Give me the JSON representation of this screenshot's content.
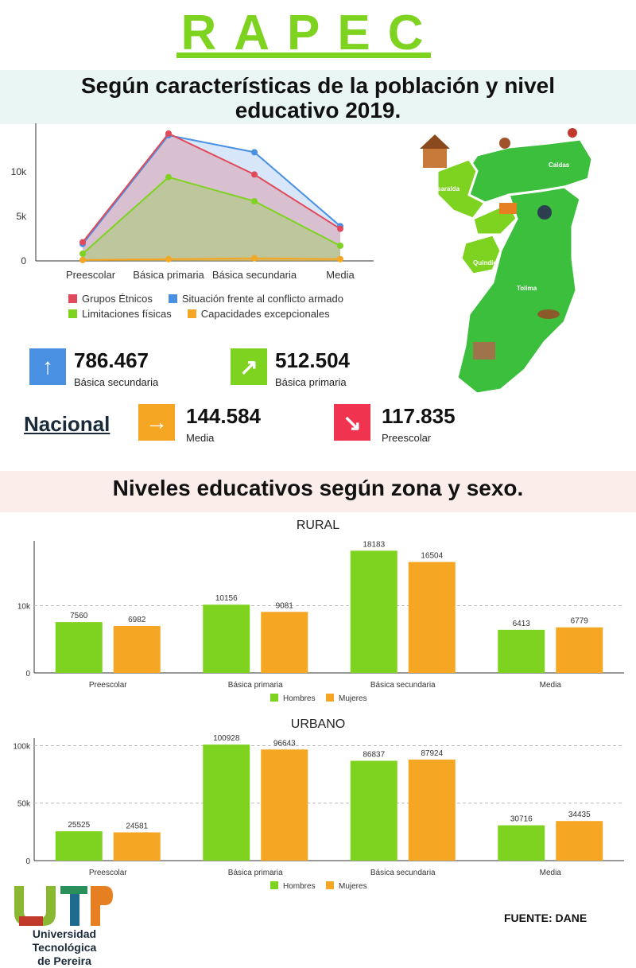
{
  "header": {
    "title": "RAPEC",
    "subtitle1_line1": "Según características de la población y nivel",
    "subtitle1_line2": "educativo 2019.",
    "subtitle2": "Niveles educativos según zona y sexo."
  },
  "colors": {
    "accent_green": "#7ed321",
    "red": "#e14a5b",
    "blue": "#4a90e2",
    "green": "#7ed321",
    "orange": "#f5a623",
    "arrow_blue": "#4a90e2",
    "arrow_green": "#7ed321",
    "arrow_orange": "#f5a623",
    "arrow_red": "#f0344f"
  },
  "chart_data": [
    {
      "type": "area",
      "title": "",
      "categories": [
        "Preescolar",
        "Básica primaria",
        "Básica secundaria",
        "Media"
      ],
      "yticks": [
        "0",
        "5k",
        "10k"
      ],
      "ylim": [
        0,
        15000
      ],
      "series": [
        {
          "name": "Grupos Étnicos",
          "color": "#e14a5b",
          "values": [
            2100,
            14300,
            9700,
            3600
          ]
        },
        {
          "name": "Situación frente al conflicto armado",
          "color": "#4a90e2",
          "values": [
            1900,
            14100,
            12200,
            3900
          ]
        },
        {
          "name": "Limitaciones físicas",
          "color": "#7ed321",
          "values": [
            800,
            9400,
            6700,
            1700
          ]
        },
        {
          "name": "Capacidades excepcionales",
          "color": "#f5a623",
          "values": [
            100,
            200,
            300,
            200
          ]
        }
      ],
      "legend": "bottom"
    },
    {
      "type": "bar",
      "title": "RURAL",
      "categories": [
        "Preescolar",
        "Básica primaria",
        "Básica secundaria",
        "Media"
      ],
      "yticks": [
        "0",
        "10k"
      ],
      "ytick_values": [
        0,
        10000
      ],
      "ylim": [
        0,
        18700
      ],
      "series": [
        {
          "name": "Hombres",
          "color": "#7ed321",
          "values": [
            7560,
            10156,
            18183,
            6413
          ]
        },
        {
          "name": "Mujeres",
          "color": "#f5a623",
          "values": [
            6982,
            9081,
            16504,
            6779
          ]
        }
      ],
      "legend": "bottom"
    },
    {
      "type": "bar",
      "title": "URBANO",
      "categories": [
        "Preescolar",
        "Básica primaria",
        "Básica secundaria",
        "Media"
      ],
      "yticks": [
        "0",
        "50k",
        "100k"
      ],
      "ytick_values": [
        0,
        50000,
        100000
      ],
      "ylim": [
        0,
        101000
      ],
      "series": [
        {
          "name": "Hombres",
          "color": "#7ed321",
          "values": [
            25525,
            100928,
            86837,
            30716
          ]
        },
        {
          "name": "Mujeres",
          "color": "#f5a623",
          "values": [
            24581,
            96643,
            87924,
            34435
          ]
        }
      ],
      "legend": "bottom"
    }
  ],
  "map": {
    "labels": [
      "Caldas",
      "Risaralda",
      "Quindío",
      "Tolima"
    ]
  },
  "stats": [
    {
      "value": "786.467",
      "label": "Básica secundaria",
      "arrow": "↑"
    },
    {
      "value": "512.504",
      "label": "Básica primaria",
      "arrow": "↗"
    },
    {
      "value": "144.584",
      "label": "Media",
      "arrow": "→"
    },
    {
      "value": "117.835",
      "label": "Preescolar",
      "arrow": "↘"
    }
  ],
  "nacional": "Nacional",
  "footer": {
    "source": "FUENTE: DANE",
    "logo_line1": "Universidad Tecnológica",
    "logo_line2": "de Pereira"
  }
}
